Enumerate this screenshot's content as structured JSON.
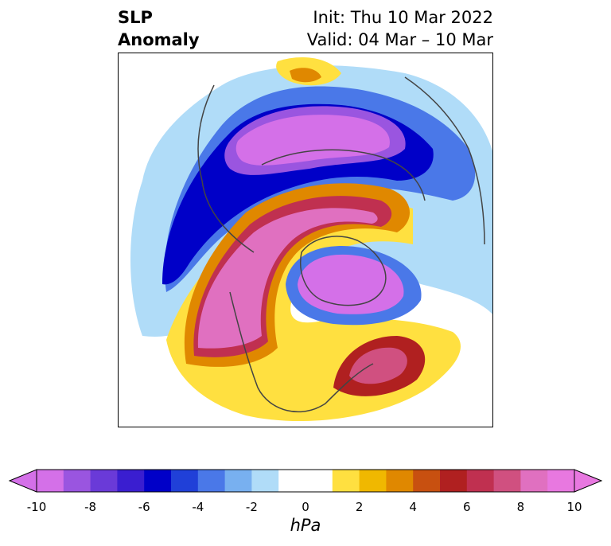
{
  "title": {
    "left_line1": "SLP",
    "left_line2": "Anomaly",
    "right_line1": "Init: Thu 10 Mar 2022",
    "right_line2": "Valid: 04 Mar – 10 Mar"
  },
  "colorbar": {
    "units": "hPa",
    "ticks": [
      "-10",
      "-8",
      "-6",
      "-4",
      "-2",
      "0",
      "2",
      "4",
      "6",
      "8",
      "10"
    ],
    "levels": [
      -10,
      -9,
      -8,
      -7,
      -6,
      -5,
      -4,
      -3,
      -2,
      -1,
      1,
      2,
      3,
      4,
      5,
      6,
      7,
      8,
      9,
      10
    ],
    "colors": [
      "#d470e8",
      "#9a55e0",
      "#6a3ad8",
      "#3a1ed0",
      "#0000c8",
      "#2040d8",
      "#4a78e8",
      "#78b0f0",
      "#b0dcf8",
      "#ffffff",
      "#ffe040",
      "#f0b800",
      "#e08800",
      "#c85010",
      "#b02020",
      "#c03050",
      "#d05080",
      "#e070c0",
      "#e878e0"
    ],
    "under_color": "#d470e8",
    "over_color": "#e878e0"
  }
}
